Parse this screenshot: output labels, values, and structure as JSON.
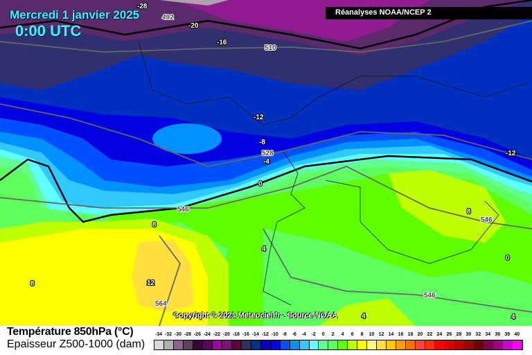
{
  "header": {
    "date": "Mercredi 1 janvier 2025",
    "time": "0:00 UTC",
    "source": "Réanalyses NOAA/NCEP 2"
  },
  "copyright": "Copyright © 2021 Meteociel.fr - Source NOAA",
  "map_labels": {
    "temperature": [
      "-28",
      "-20",
      "-16",
      "-12",
      "-8",
      "-4",
      "0",
      "-12",
      "8",
      "4",
      "12",
      "8",
      "8",
      "4",
      "0",
      "4"
    ],
    "thickness": [
      "492",
      "510",
      "528",
      "546",
      "546",
      "564",
      "546"
    ]
  },
  "legend": {
    "title_temperature": "Température 850hPa (°C)",
    "title_thickness": "Epaisseur Z500-1000 (dam)",
    "scale_labels": [
      "-34",
      "-32",
      "-30",
      "-28",
      "-26",
      "-24",
      "-22",
      "-20",
      "-18",
      "-16",
      "-14",
      "-12",
      "-10",
      "-8",
      "-6",
      "-4",
      "-2",
      "0",
      "2",
      "4",
      "6",
      "8",
      "10",
      "12",
      "14",
      "16",
      "18",
      "20",
      "22",
      "24",
      "26",
      "28",
      "30",
      "32",
      "34",
      "36",
      "38",
      "40"
    ],
    "scale_colors": [
      "#d8d8d8",
      "#b0b0b0",
      "#906090",
      "#604060",
      "#400040",
      "#600060",
      "#a000a0",
      "#801080",
      "#600040",
      "#303060",
      "#003090",
      "#0000d0",
      "#0000ff",
      "#0050ff",
      "#0090ff",
      "#30c8ff",
      "#60ffff",
      "#60ff90",
      "#60ff60",
      "#60ff00",
      "#c0ff00",
      "#ffff00",
      "#ffff80",
      "#ffe040",
      "#ffc800",
      "#ffa000",
      "#ff7000",
      "#ff4040",
      "#ff3000",
      "#ff0000",
      "#e00000",
      "#c00000",
      "#a00000",
      "#700000",
      "#800050",
      "#a00080",
      "#d000d0",
      "#ff00ff"
    ]
  }
}
